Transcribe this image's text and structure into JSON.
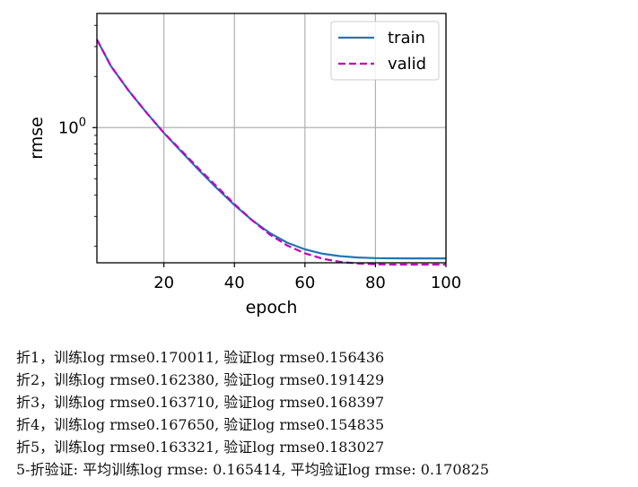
{
  "chart_data": {
    "type": "line",
    "xlabel": "epoch",
    "ylabel": "rmse",
    "xlim": [
      1,
      100
    ],
    "ylim": [
      0.16,
      4.7
    ],
    "yscale": "log",
    "grid": true,
    "legend_position": "top-right",
    "x_ticks": [
      20,
      40,
      60,
      80,
      100
    ],
    "y_ticks": [
      {
        "value": 1,
        "base": "10",
        "exponent": "0"
      }
    ],
    "series": [
      {
        "name": "train",
        "color": "#1f77b4",
        "dash": "solid",
        "x": [
          1,
          5,
          10,
          15,
          20,
          25,
          30,
          35,
          40,
          45,
          50,
          55,
          60,
          65,
          70,
          75,
          80,
          85,
          90,
          95,
          100
        ],
        "y": [
          3.3,
          2.3,
          1.65,
          1.23,
          0.93,
          0.72,
          0.56,
          0.44,
          0.35,
          0.285,
          0.24,
          0.21,
          0.192,
          0.181,
          0.175,
          0.172,
          0.1705,
          0.17,
          0.1698,
          0.1698,
          0.1698
        ]
      },
      {
        "name": "valid",
        "color": "#bf00bf",
        "dash": "dashed",
        "x": [
          1,
          5,
          10,
          15,
          20,
          25,
          30,
          35,
          40,
          45,
          50,
          55,
          60,
          65,
          70,
          75,
          80,
          85,
          90,
          95,
          100
        ],
        "y": [
          3.3,
          2.3,
          1.65,
          1.23,
          0.93,
          0.73,
          0.57,
          0.45,
          0.355,
          0.285,
          0.235,
          0.202,
          0.182,
          0.169,
          0.162,
          0.1585,
          0.1568,
          0.1562,
          0.1562,
          0.1562,
          0.1562
        ]
      }
    ]
  },
  "log_lines": [
    "折1，训练log rmse0.170011, 验证log rmse0.156436",
    "折2，训练log rmse0.162380, 验证log rmse0.191429",
    "折3，训练log rmse0.163710, 验证log rmse0.168397",
    "折4，训练log rmse0.167650, 验证log rmse0.154835",
    "折5，训练log rmse0.163321, 验证log rmse0.183027",
    "5-折验证: 平均训练log rmse: 0.165414, 平均验证log rmse: 0.170825"
  ]
}
